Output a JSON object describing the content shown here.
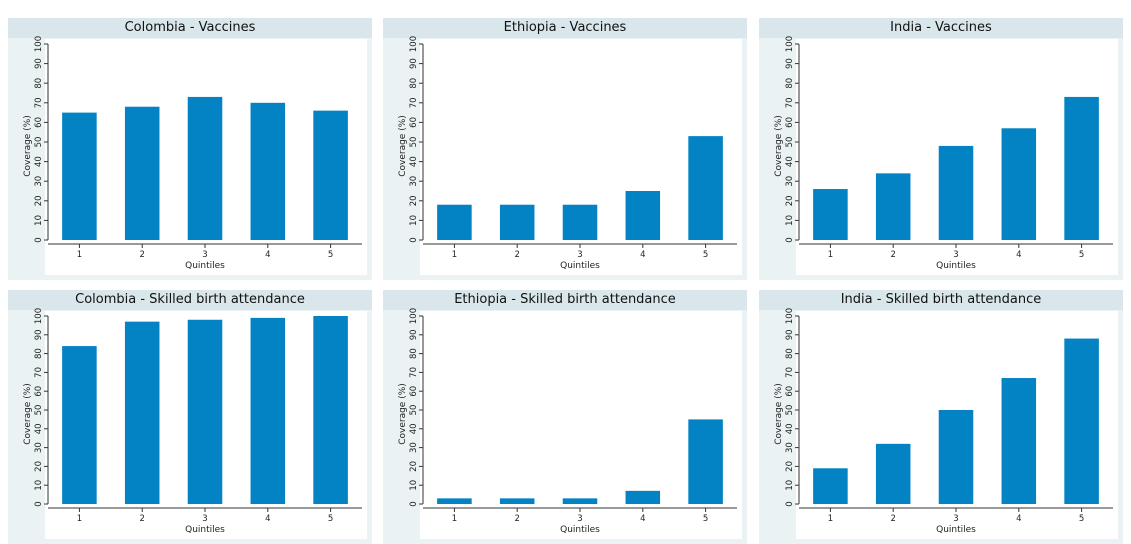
{
  "colors": {
    "bar": "#0483c4",
    "panel_bg": "#eaf2f3",
    "title_bg": "#d9e6eb",
    "plot_bg": "#ffffff"
  },
  "chart_data": [
    {
      "type": "bar",
      "title": "Colombia - Vaccines",
      "xlabel": "Quintiles",
      "ylabel": "Coverage (%)",
      "categories": [
        "1",
        "2",
        "3",
        "4",
        "5"
      ],
      "values": [
        65,
        68,
        73,
        70,
        66
      ],
      "ylim": [
        0,
        100
      ],
      "yticks": [
        "0",
        "10",
        "20",
        "30",
        "40",
        "50",
        "60",
        "70",
        "80",
        "90",
        "100"
      ],
      "grid": false,
      "legend": "none"
    },
    {
      "type": "bar",
      "title": "Ethiopia - Vaccines",
      "xlabel": "Quintiles",
      "ylabel": "Coverage (%)",
      "categories": [
        "1",
        "2",
        "3",
        "4",
        "5"
      ],
      "values": [
        18,
        18,
        18,
        25,
        53
      ],
      "ylim": [
        0,
        100
      ],
      "yticks": [
        "0",
        "10",
        "20",
        "30",
        "40",
        "50",
        "60",
        "70",
        "80",
        "90",
        "100"
      ],
      "grid": false,
      "legend": "none"
    },
    {
      "type": "bar",
      "title": "India - Vaccines",
      "xlabel": "Quintiles",
      "ylabel": "Coverage (%)",
      "categories": [
        "1",
        "2",
        "3",
        "4",
        "5"
      ],
      "values": [
        26,
        34,
        48,
        57,
        73
      ],
      "ylim": [
        0,
        100
      ],
      "yticks": [
        "0",
        "10",
        "20",
        "30",
        "40",
        "50",
        "60",
        "70",
        "80",
        "90",
        "100"
      ],
      "grid": false,
      "legend": "none"
    },
    {
      "type": "bar",
      "title": "Colombia - Skilled birth attendance",
      "xlabel": "Quintiles",
      "ylabel": "Coverage (%)",
      "categories": [
        "1",
        "2",
        "3",
        "4",
        "5"
      ],
      "values": [
        84,
        97,
        98,
        99,
        100
      ],
      "ylim": [
        0,
        100
      ],
      "yticks": [
        "0",
        "10",
        "20",
        "30",
        "40",
        "50",
        "60",
        "70",
        "80",
        "90",
        "100"
      ],
      "grid": false,
      "legend": "none"
    },
    {
      "type": "bar",
      "title": "Ethiopia - Skilled birth attendance",
      "xlabel": "Quintiles",
      "ylabel": "Coverage (%)",
      "categories": [
        "1",
        "2",
        "3",
        "4",
        "5"
      ],
      "values": [
        3,
        3,
        3,
        7,
        45
      ],
      "ylim": [
        0,
        100
      ],
      "yticks": [
        "0",
        "10",
        "20",
        "30",
        "40",
        "50",
        "60",
        "70",
        "80",
        "90",
        "100"
      ],
      "grid": false,
      "legend": "none"
    },
    {
      "type": "bar",
      "title": "India - Skilled birth attendance",
      "xlabel": "Quintiles",
      "ylabel": "Coverage (%)",
      "categories": [
        "1",
        "2",
        "3",
        "4",
        "5"
      ],
      "values": [
        19,
        32,
        50,
        67,
        88
      ],
      "ylim": [
        0,
        100
      ],
      "yticks": [
        "0",
        "10",
        "20",
        "30",
        "40",
        "50",
        "60",
        "70",
        "80",
        "90",
        "100"
      ],
      "grid": false,
      "legend": "none"
    }
  ]
}
